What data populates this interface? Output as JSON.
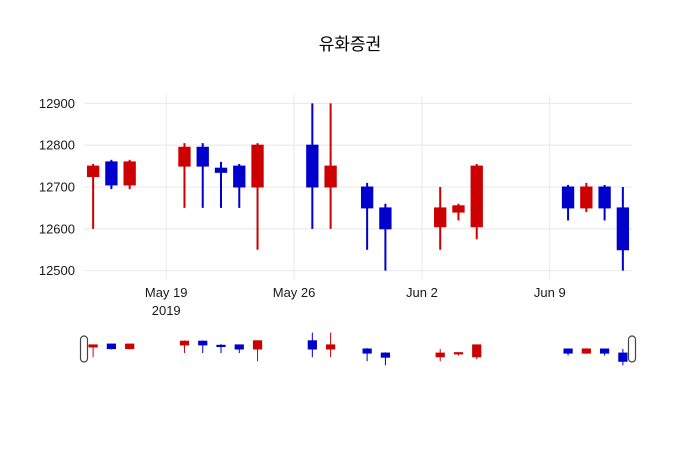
{
  "chart_data": {
    "type": "candlestick",
    "title": "유화증권",
    "increasing_color": "#cc0000",
    "decreasing_color": "#0000cc",
    "grid_color": "#e8e8e8",
    "axis_text_color": "#1a1a1a",
    "background_color": "#ffffff",
    "ylim": [
      12480,
      12920
    ],
    "yticks": [
      12500,
      12600,
      12700,
      12800,
      12900
    ],
    "xticks": [
      {
        "date": "2019-05-19",
        "label": "May 19",
        "sublabel": "2019"
      },
      {
        "date": "2019-05-26",
        "label": "May 26",
        "sublabel": ""
      },
      {
        "date": "2019-06-02",
        "label": "Jun 2",
        "sublabel": ""
      },
      {
        "date": "2019-06-09",
        "label": "Jun 9",
        "sublabel": ""
      }
    ],
    "has_rangeslider": true,
    "candles": [
      {
        "date": "2019-05-15",
        "open": 12725,
        "high": 12755,
        "low": 12600,
        "close": 12750
      },
      {
        "date": "2019-05-16",
        "open": 12760,
        "high": 12765,
        "low": 12695,
        "close": 12705
      },
      {
        "date": "2019-05-17",
        "open": 12705,
        "high": 12765,
        "low": 12695,
        "close": 12760
      },
      {
        "date": "2019-05-20",
        "open": 12750,
        "high": 12805,
        "low": 12650,
        "close": 12795
      },
      {
        "date": "2019-05-21",
        "open": 12795,
        "high": 12805,
        "low": 12650,
        "close": 12750
      },
      {
        "date": "2019-05-22",
        "open": 12745,
        "high": 12760,
        "low": 12650,
        "close": 12735
      },
      {
        "date": "2019-05-23",
        "open": 12750,
        "high": 12755,
        "low": 12650,
        "close": 12700
      },
      {
        "date": "2019-05-24",
        "open": 12700,
        "high": 12805,
        "low": 12550,
        "close": 12800
      },
      {
        "date": "2019-05-27",
        "open": 12800,
        "high": 12900,
        "low": 12600,
        "close": 12700
      },
      {
        "date": "2019-05-28",
        "open": 12700,
        "high": 12900,
        "low": 12600,
        "close": 12750
      },
      {
        "date": "2019-05-30",
        "open": 12700,
        "high": 12710,
        "low": 12550,
        "close": 12650
      },
      {
        "date": "2019-05-31",
        "open": 12650,
        "high": 12660,
        "low": 12500,
        "close": 12600
      },
      {
        "date": "2019-06-03",
        "open": 12605,
        "high": 12700,
        "low": 12550,
        "close": 12650
      },
      {
        "date": "2019-06-04",
        "open": 12640,
        "high": 12660,
        "low": 12620,
        "close": 12655
      },
      {
        "date": "2019-06-05",
        "open": 12605,
        "high": 12755,
        "low": 12575,
        "close": 12750
      },
      {
        "date": "2019-06-10",
        "open": 12700,
        "high": 12705,
        "low": 12620,
        "close": 12650
      },
      {
        "date": "2019-06-11",
        "open": 12650,
        "high": 12710,
        "low": 12640,
        "close": 12700
      },
      {
        "date": "2019-06-12",
        "open": 12700,
        "high": 12705,
        "low": 12620,
        "close": 12650
      },
      {
        "date": "2019-06-13",
        "open": 12650,
        "high": 12700,
        "low": 12500,
        "close": 12550
      }
    ]
  }
}
